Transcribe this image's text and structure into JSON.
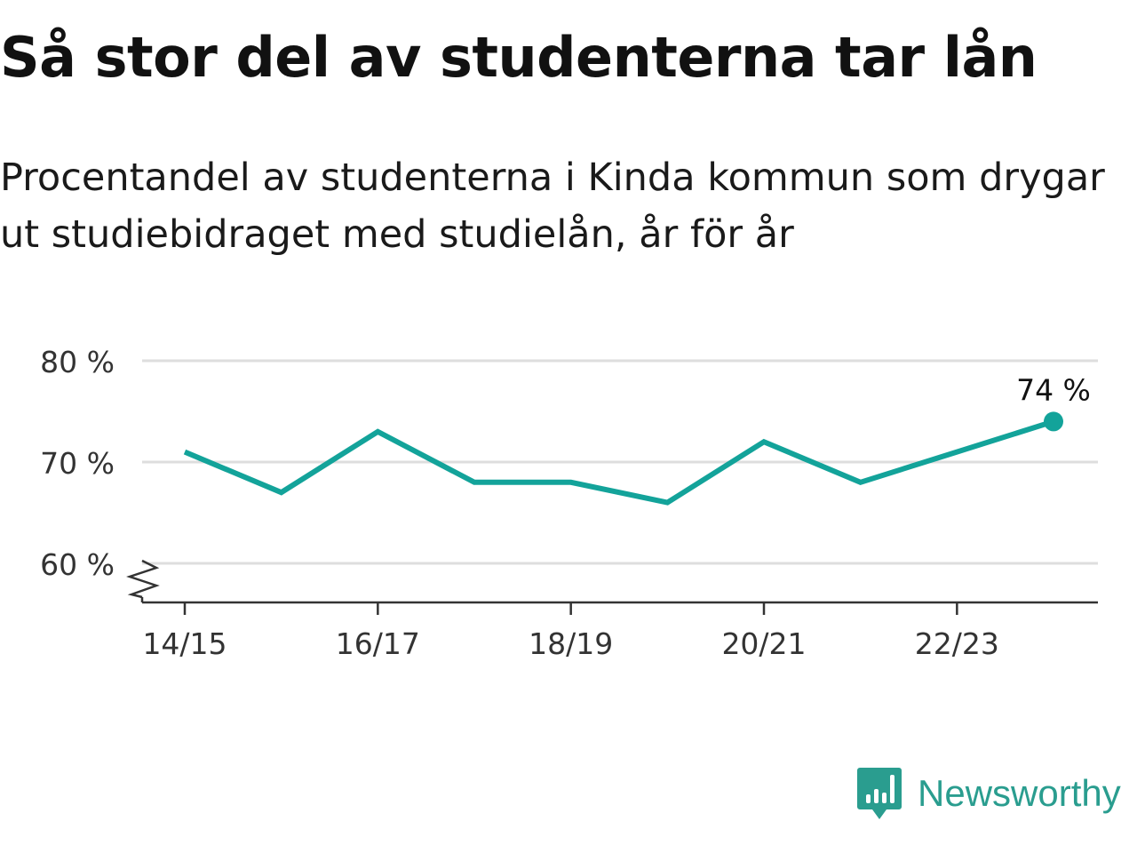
{
  "header": {
    "title": "Så stor del av studenterna tar lån",
    "subtitle": "Procentandel av studenterna i Kinda kommun som drygar ut studiebidraget med studielån, år för år"
  },
  "chart_data": {
    "type": "line",
    "x": [
      "14/15",
      "15/16",
      "16/17",
      "17/18",
      "18/19",
      "19/20",
      "20/21",
      "21/22",
      "22/23",
      "23/24"
    ],
    "x_tick_labels": [
      "14/15",
      "16/17",
      "18/19",
      "20/21",
      "22/23"
    ],
    "series": [
      {
        "values": [
          71,
          67,
          73,
          68,
          68,
          66,
          72,
          68,
          71,
          74
        ]
      }
    ],
    "ylim": [
      60,
      80
    ],
    "y_ticks": [
      60,
      70,
      80
    ],
    "y_tick_labels": [
      "60 %",
      "70 %",
      "80 %"
    ],
    "y_axis_break": true,
    "grid": true,
    "end_label": "74 %",
    "colors": {
      "line": "#13a39a",
      "grid": "#dedede",
      "axis": "#333333"
    }
  },
  "brand": {
    "name": "Newsworthy",
    "icon": "newsworthy-logo-icon",
    "color": "#2a9d8f"
  }
}
